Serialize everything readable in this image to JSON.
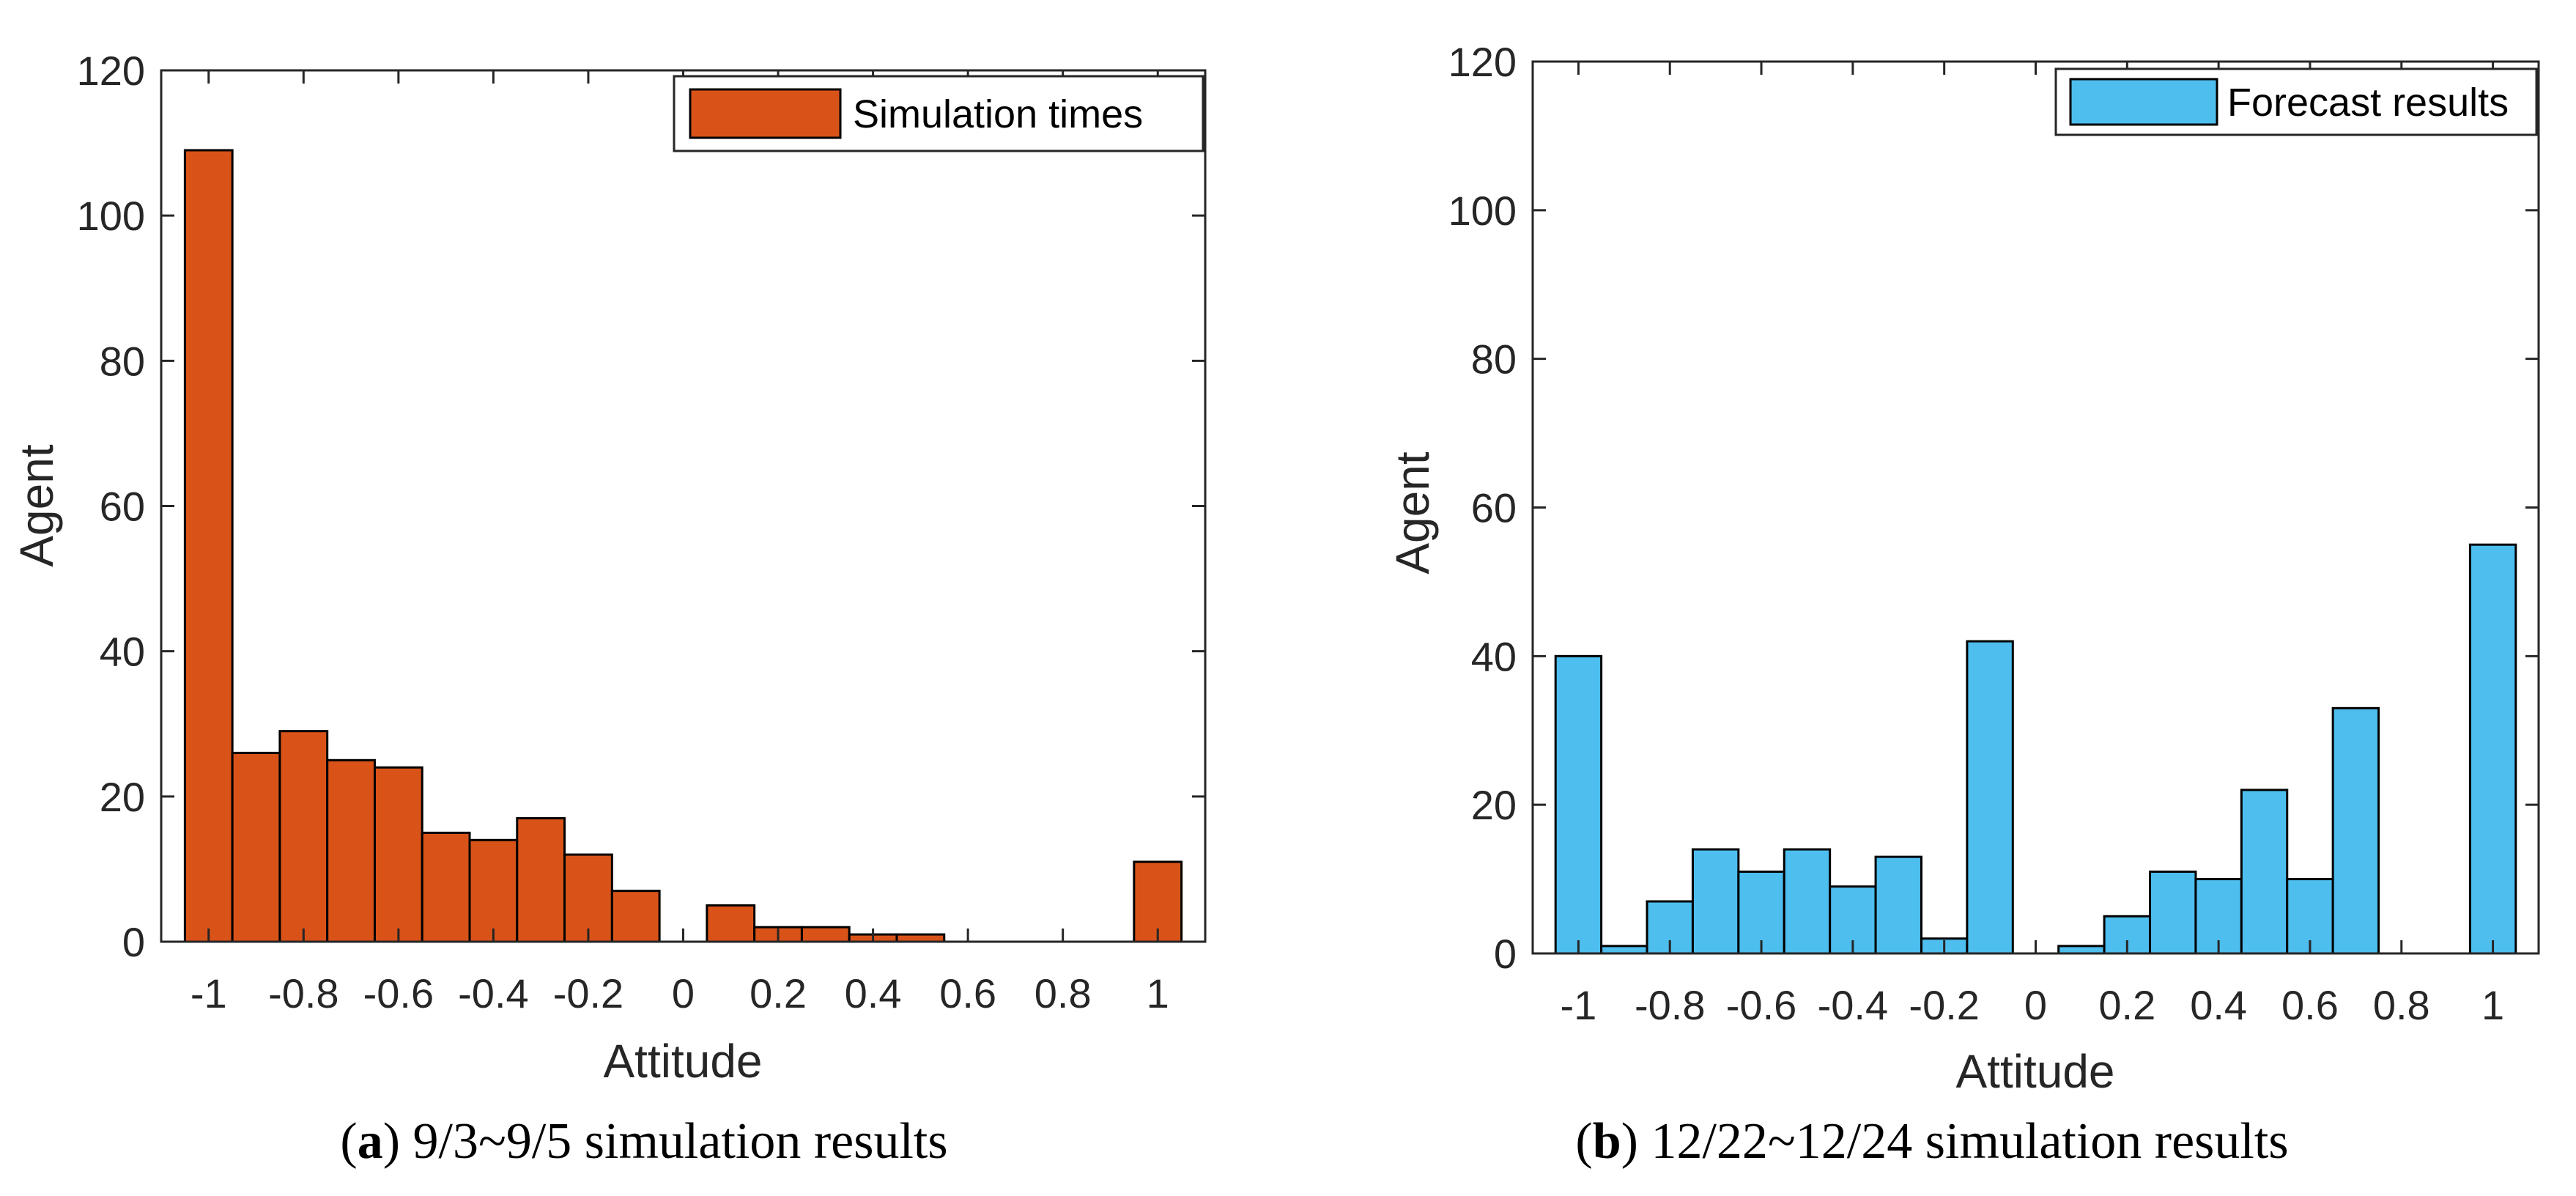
{
  "chart_data": [
    {
      "type": "bar",
      "panel_id": "a",
      "caption_letter": "a",
      "caption_text": "9/3~9/5 simulation results",
      "legend": "Simulation times",
      "color": "#D95319",
      "xlabel": "Attitude",
      "ylabel": "Agent",
      "xlim": [
        -1.1,
        1.1
      ],
      "ylim": [
        0,
        120
      ],
      "xticks": [
        -1,
        -0.8,
        -0.6,
        -0.4,
        -0.2,
        0,
        0.2,
        0.4,
        0.6,
        0.8,
        1
      ],
      "xtick_labels": [
        "-1",
        "-0.8",
        "-0.6",
        "-0.4",
        "-0.2",
        "0",
        "0.2",
        "0.4",
        "0.6",
        "0.8",
        "1"
      ],
      "yticks": [
        0,
        20,
        40,
        60,
        80,
        100,
        120
      ],
      "ytick_labels": [
        "0",
        "20",
        "40",
        "60",
        "80",
        "100",
        "120"
      ],
      "bin_width": 0.1,
      "bin_centers": [
        -1.0,
        -0.9,
        -0.8,
        -0.7,
        -0.6,
        -0.5,
        -0.4,
        -0.3,
        -0.2,
        -0.1,
        0.0,
        0.1,
        0.2,
        0.3,
        0.4,
        0.5,
        0.6,
        0.7,
        0.8,
        0.9,
        1.0
      ],
      "values": [
        109,
        26,
        29,
        25,
        24,
        15,
        14,
        17,
        12,
        7,
        0,
        5,
        2,
        2,
        1,
        1,
        0,
        0,
        0,
        0,
        11
      ]
    },
    {
      "type": "bar",
      "panel_id": "b",
      "caption_letter": "b",
      "caption_text": "12/22~12/24 simulation results",
      "legend": "Forecast results",
      "color": "#4DBEEE",
      "xlabel": "Attitude",
      "ylabel": "Agent",
      "xlim": [
        -1.1,
        1.1
      ],
      "ylim": [
        0,
        120
      ],
      "xticks": [
        -1,
        -0.8,
        -0.6,
        -0.4,
        -0.2,
        0,
        0.2,
        0.4,
        0.6,
        0.8,
        1
      ],
      "xtick_labels": [
        "-1",
        "-0.8",
        "-0.6",
        "-0.4",
        "-0.2",
        "0",
        "0.2",
        "0.4",
        "0.6",
        "0.8",
        "1"
      ],
      "yticks": [
        0,
        20,
        40,
        60,
        80,
        100,
        120
      ],
      "ytick_labels": [
        "0",
        "20",
        "40",
        "60",
        "80",
        "100",
        "120"
      ],
      "bin_width": 0.1,
      "bin_centers": [
        -1.0,
        -0.9,
        -0.8,
        -0.7,
        -0.6,
        -0.5,
        -0.4,
        -0.3,
        -0.2,
        -0.1,
        0.0,
        0.1,
        0.2,
        0.3,
        0.4,
        0.5,
        0.6,
        0.7,
        0.8,
        0.9,
        1.0
      ],
      "values": [
        40,
        1,
        7,
        14,
        11,
        14,
        9,
        13,
        2,
        42,
        0,
        1,
        5,
        11,
        10,
        22,
        10,
        33,
        0,
        0,
        55
      ]
    }
  ]
}
